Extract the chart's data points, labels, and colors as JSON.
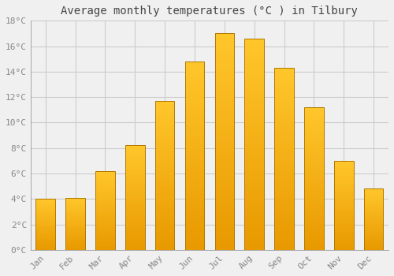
{
  "title": "Average monthly temperatures (°C ) in Tilbury",
  "months": [
    "Jan",
    "Feb",
    "Mar",
    "Apr",
    "May",
    "Jun",
    "Jul",
    "Aug",
    "Sep",
    "Oct",
    "Nov",
    "Dec"
  ],
  "values": [
    4.0,
    4.1,
    6.2,
    8.2,
    11.7,
    14.8,
    17.0,
    16.6,
    14.3,
    11.2,
    7.0,
    4.8
  ],
  "bar_color_top": "#FFC82A",
  "bar_color_bottom": "#E89A00",
  "bar_edge_color": "#B07800",
  "ylim": [
    0,
    18
  ],
  "ytick_step": 2,
  "background_color": "#F0F0F0",
  "grid_color": "#CCCCCC",
  "title_fontsize": 10,
  "tick_fontsize": 8,
  "tick_label_color": "#888888",
  "title_color": "#444444",
  "bar_width": 0.65
}
